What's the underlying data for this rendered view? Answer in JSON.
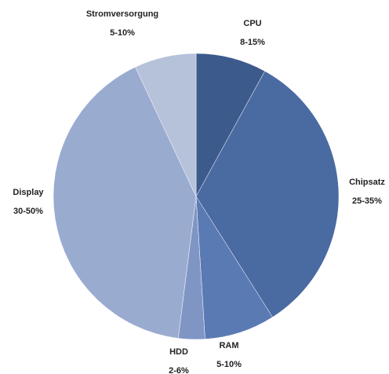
{
  "chart_data": {
    "type": "pie",
    "categories": [
      "CPU",
      "Chipsatz",
      "RAM",
      "HDD",
      "Display",
      "Stromversorgung"
    ],
    "values": [
      8,
      33,
      8,
      3,
      41,
      7
    ],
    "value_labels": [
      "8-15%",
      "25-35%",
      "5-10%",
      "2-6%",
      "30-50%",
      "5-10%"
    ],
    "colors": [
      "#3d5a8c",
      "#4a6aa2",
      "#5a7ab4",
      "#7f95c4",
      "#9aabd0",
      "#b6c1da"
    ]
  }
}
